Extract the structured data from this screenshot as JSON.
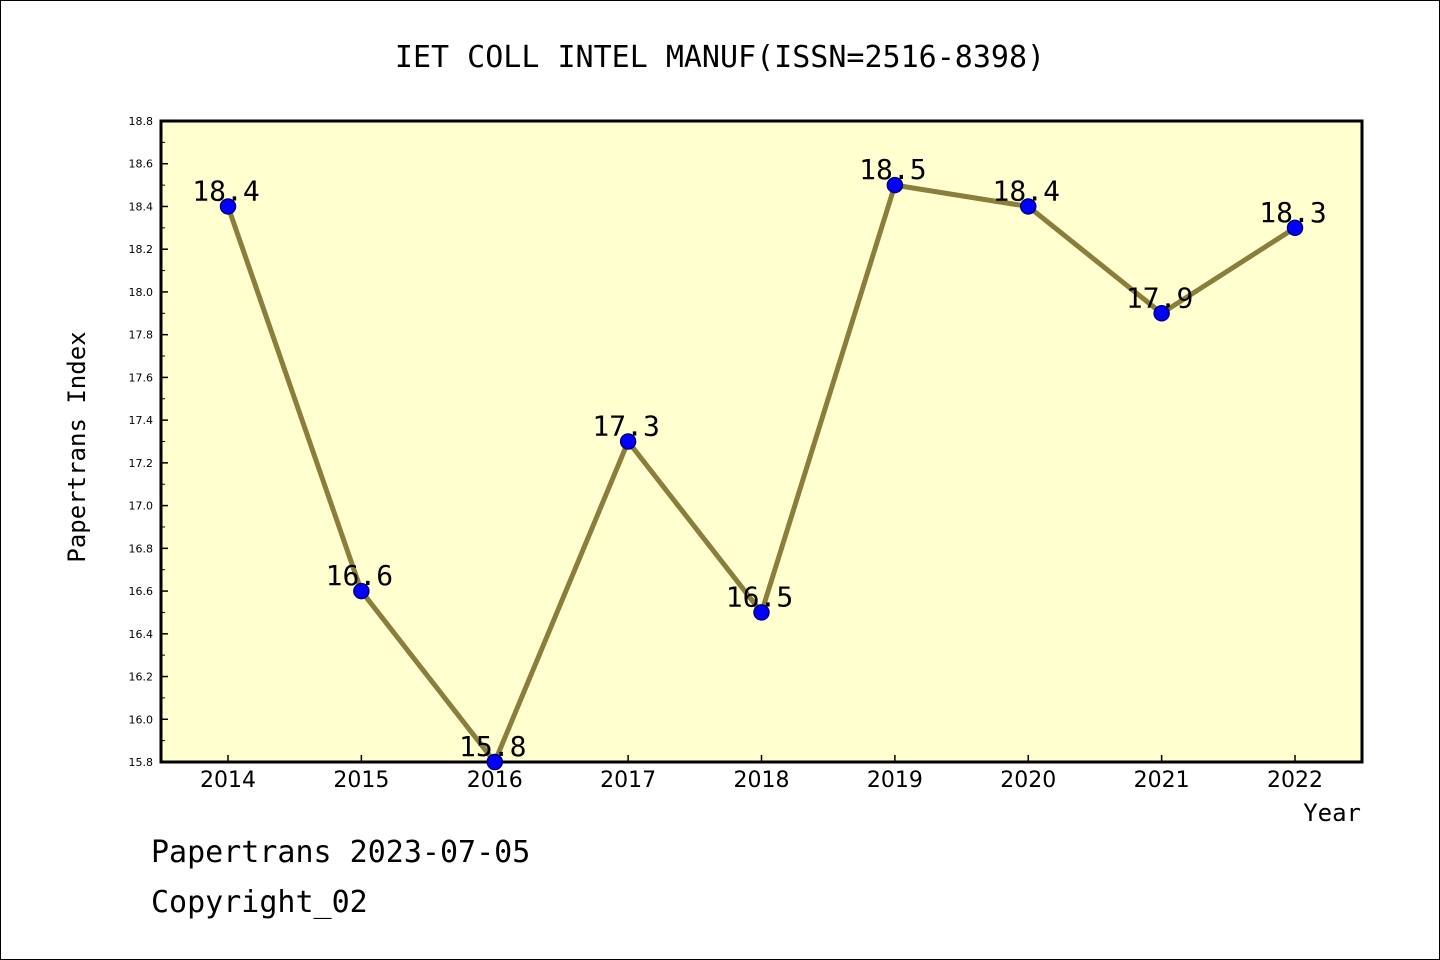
{
  "chart_data": {
    "type": "line",
    "title": "IET COLL INTEL MANUF(ISSN=2516-8398)",
    "xlabel": "Year",
    "ylabel": "Papertrans Index",
    "categories": [
      "2014",
      "2015",
      "2016",
      "2017",
      "2018",
      "2019",
      "2020",
      "2021",
      "2022"
    ],
    "values": [
      18.4,
      16.6,
      15.8,
      17.3,
      16.5,
      18.5,
      18.4,
      17.9,
      18.3
    ],
    "data_labels": [
      "18.4",
      "16.6",
      "15.8",
      "17.3",
      "16.5",
      "18.5",
      "18.4",
      "17.9",
      "18.3"
    ],
    "ylim": [
      15.8,
      18.8
    ],
    "yticks": [
      "15.8",
      "16.0",
      "16.2",
      "16.4",
      "16.6",
      "16.8",
      "17.0",
      "17.2",
      "17.4",
      "17.6",
      "17.8",
      "18.0",
      "18.2",
      "18.4",
      "18.6",
      "18.8"
    ],
    "grid": false,
    "colors": {
      "plot_background": "#ffffd0",
      "line": "#8b7d3a",
      "marker_fill": "#0000ff",
      "marker_edge": "#000080",
      "axis": "#000000"
    }
  },
  "footer": {
    "date": "Papertrans 2023-07-05",
    "copyright": "Copyright_02"
  }
}
